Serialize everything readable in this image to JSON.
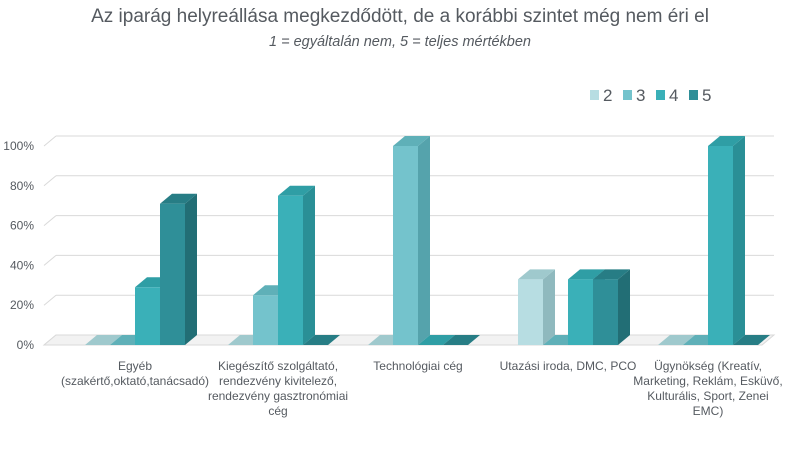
{
  "chart_data": {
    "type": "bar",
    "title": "Az iparág helyreállása megkezdődött, de a korábbi szintet még nem éri el",
    "subtitle": "1 = egyáltalán nem, 5 = teljes mértékben",
    "categories": [
      [
        "Egyéb",
        "(szakértő,oktató,tanácsadó)"
      ],
      [
        "Kiegészítő szolgáltató,",
        "rendezvény kivitelező,",
        "rendezvény gasztronómiai",
        "cég"
      ],
      [
        "Technológiai cég"
      ],
      [
        "Utazási iroda, DMC, PCO"
      ],
      [
        "Ügynökség (Kreatív,",
        "Marketing, Reklám, Esküvő,",
        "Kulturális, Sport, Zenei",
        "EMC)"
      ]
    ],
    "series": [
      {
        "name": "2",
        "values": [
          0,
          0,
          0,
          33,
          0
        ],
        "color": "#b7dde2",
        "side": "#8fb9be",
        "top": "#9fc9cd"
      },
      {
        "name": "3",
        "values": [
          0,
          25,
          100,
          0,
          0
        ],
        "color": "#74c3cc",
        "side": "#55a3ac",
        "top": "#5fb0b8"
      },
      {
        "name": "4",
        "values": [
          29,
          75,
          0,
          33,
          100
        ],
        "color": "#3ab0b8",
        "side": "#2a8f96",
        "top": "#2f9ea5"
      },
      {
        "name": "5",
        "values": [
          71,
          0,
          0,
          33,
          0
        ],
        "color": "#2f8f98",
        "side": "#226e75",
        "top": "#277d85"
      }
    ],
    "y_ticks": [
      "0%",
      "20%",
      "40%",
      "60%",
      "80%",
      "100%"
    ],
    "ylim": [
      0,
      100
    ],
    "legend_position": "top-right",
    "grid": true
  }
}
